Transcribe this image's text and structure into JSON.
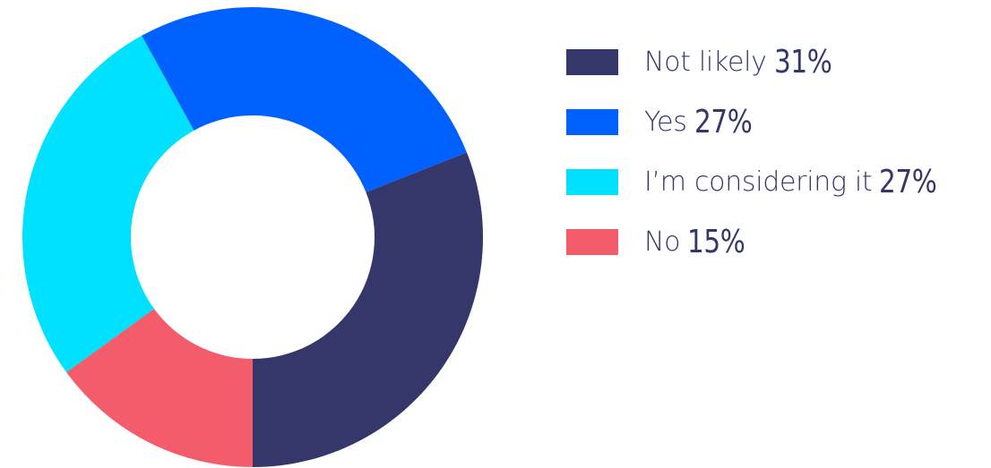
{
  "chart_data": {
    "type": "pie",
    "variant": "donut",
    "title": "",
    "legend_position": "right",
    "slices": [
      {
        "label": "Not likely",
        "value": 31,
        "value_label": "31%",
        "color": "#35366a"
      },
      {
        "label": "Yes",
        "value": 27,
        "value_label": "27%",
        "color": "#0061ff"
      },
      {
        "label": "I’m considering it",
        "value": 27,
        "value_label": "27%",
        "color": "#00e1ff"
      },
      {
        "label": "No",
        "value": 15,
        "value_label": "15%",
        "color": "#f25c6b"
      }
    ],
    "clockwise_from_bottom_order": [
      "No",
      "I’m considering it",
      "Yes",
      "Not likely"
    ]
  }
}
